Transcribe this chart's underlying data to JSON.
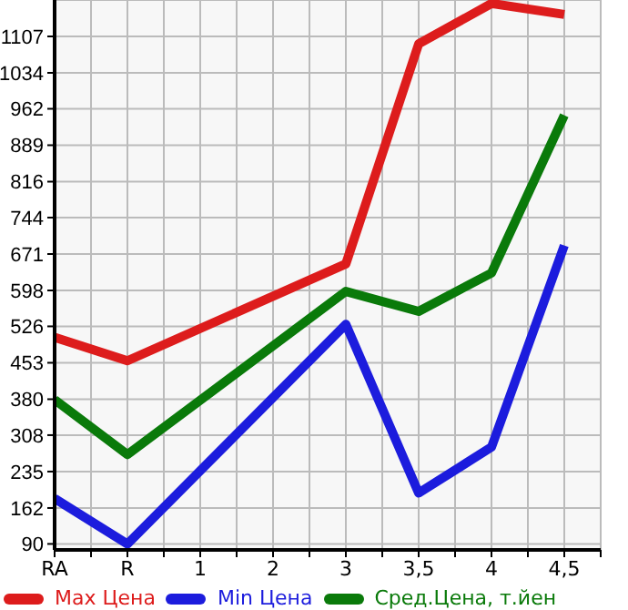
{
  "chart_data": {
    "type": "line",
    "categories": [
      "RA",
      "R",
      "1",
      "2",
      "3",
      "3,5",
      "4",
      "4,5"
    ],
    "series": [
      {
        "name": "Max Цена",
        "color": "#dd1c1c",
        "values": [
          504,
          457,
          null,
          null,
          651,
          1092,
          1173,
          1151
        ]
      },
      {
        "name": "Min Цена",
        "color": "#1c1cdd",
        "values": [
          181,
          90,
          null,
          null,
          530,
          192,
          284,
          688
        ]
      },
      {
        "name": "Сред.Цена, т.йен",
        "color": "#0a7a0a",
        "values": [
          379,
          269,
          null,
          null,
          596,
          556,
          633,
          949
        ]
      }
    ],
    "ylim": [
      78,
      1180
    ],
    "yticks": [
      90,
      162,
      235,
      308,
      380,
      453,
      526,
      598,
      671,
      744,
      816,
      889,
      962,
      1034,
      1107
    ],
    "grid": true,
    "legend": "bottom",
    "marker": "none",
    "line_style": "solid"
  }
}
